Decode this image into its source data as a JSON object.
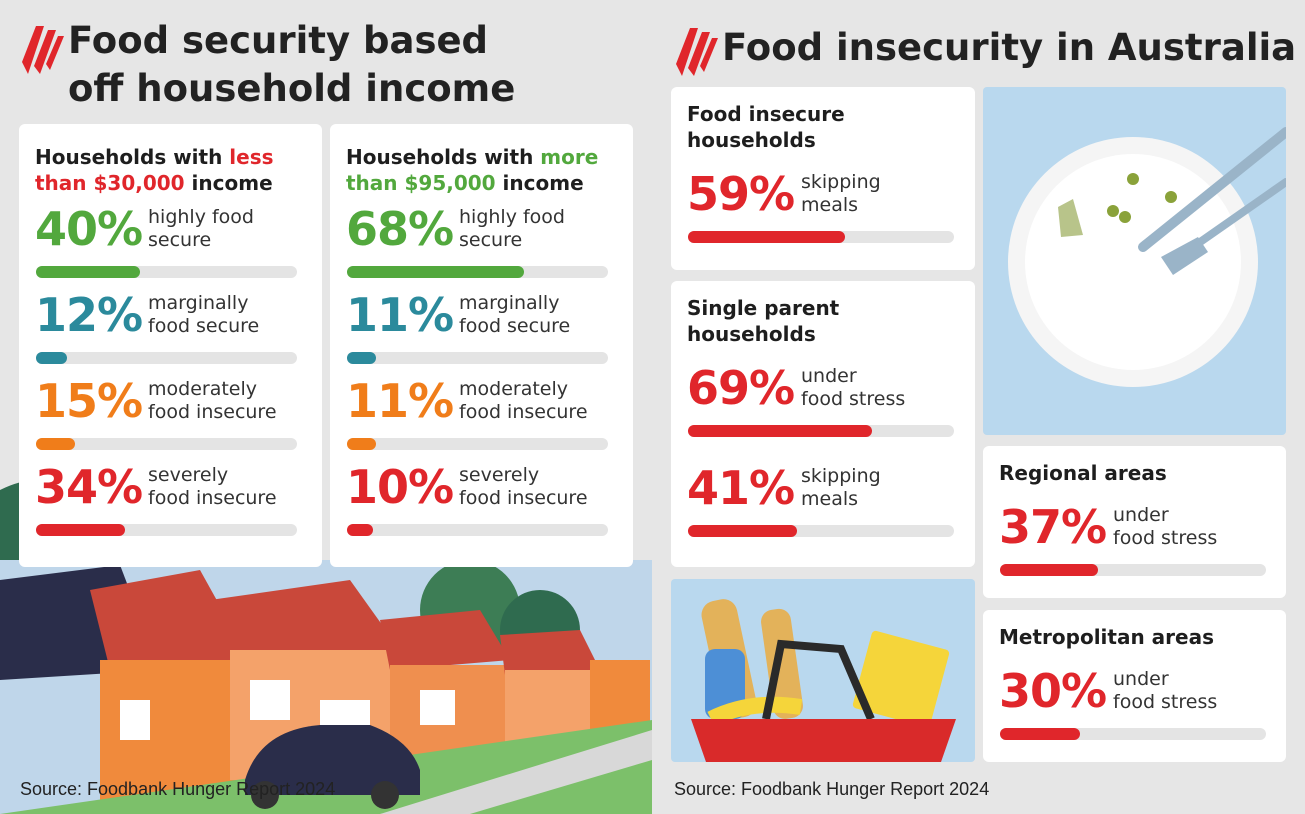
{
  "left": {
    "title": [
      "Food security based",
      "off household income"
    ],
    "source": "Source: Foodbank Hunger Report 2024",
    "bar_colors": [
      "#52a83d",
      "#2b8a9c",
      "#f07d1a",
      "#e0262b"
    ],
    "groups": [
      {
        "heading": [
          "Households with ",
          "less",
          "than $30,000",
          " income"
        ],
        "highlight": "#e0262b",
        "stats": [
          {
            "value": 40,
            "label": "40%",
            "text": [
              "highly food",
              "secure"
            ]
          },
          {
            "value": 12,
            "label": "12%",
            "text": [
              "marginally",
              "food secure"
            ]
          },
          {
            "value": 15,
            "label": "15%",
            "text": [
              "moderately",
              "food insecure"
            ]
          },
          {
            "value": 34,
            "label": "34%",
            "text": [
              "severely",
              "food insecure"
            ]
          }
        ]
      },
      {
        "heading": [
          "Households with ",
          "more",
          "than $95,000",
          " income"
        ],
        "highlight": "#52a83d",
        "stats": [
          {
            "value": 68,
            "label": "68%",
            "text": [
              "highly food",
              "secure"
            ]
          },
          {
            "value": 11,
            "label": "11%",
            "text": [
              "marginally",
              "food secure"
            ]
          },
          {
            "value": 11,
            "label": "11%",
            "text": [
              "moderately",
              "food insecure"
            ]
          },
          {
            "value": 10,
            "label": "10%",
            "text": [
              "severely",
              "food insecure"
            ]
          }
        ]
      }
    ]
  },
  "right": {
    "title": "Food insecurity in Australia",
    "source": "Source: Foodbank Hunger Report 2024",
    "color": "#e0262b",
    "cards": [
      {
        "heading": [
          "Food insecure",
          "households"
        ],
        "stats": [
          {
            "value": 59,
            "label": "59%",
            "text": [
              "skipping",
              "meals"
            ]
          }
        ]
      },
      {
        "heading": [
          "Single parent",
          "households"
        ],
        "stats": [
          {
            "value": 69,
            "label": "69%",
            "text": [
              "under",
              "food stress"
            ]
          },
          {
            "value": 41,
            "label": "41%",
            "text": [
              "skipping",
              "meals"
            ]
          }
        ]
      },
      {
        "heading": [
          "Regional areas"
        ],
        "stats": [
          {
            "value": 37,
            "label": "37%",
            "text": [
              "under",
              "food stress"
            ]
          }
        ]
      },
      {
        "heading": [
          "Metropolitan areas"
        ],
        "stats": [
          {
            "value": 30,
            "label": "30%",
            "text": [
              "under",
              "food stress"
            ]
          }
        ]
      }
    ]
  }
}
